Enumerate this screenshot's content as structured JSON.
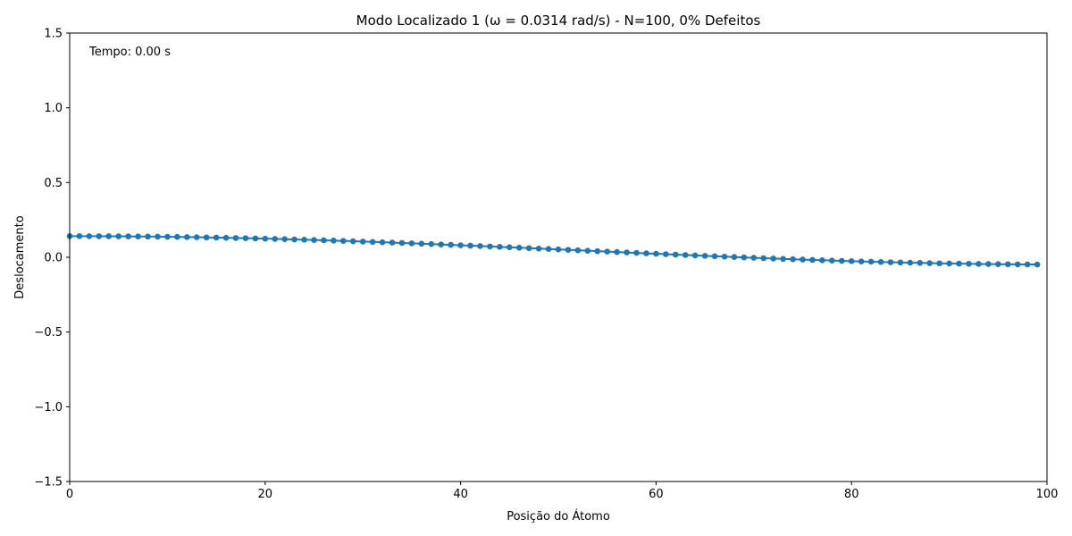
{
  "chart_data": {
    "type": "line",
    "title": "Modo Localizado 1 (ω = 0.0314 rad/s) - N=100, 0% Defeitos",
    "xlabel": "Posição do Átomo",
    "ylabel": "Deslocamento",
    "annotation": "Tempo: 0.00 s",
    "xlim": [
      0,
      100
    ],
    "ylim": [
      -1.5,
      1.5
    ],
    "x_ticks": [
      0,
      20,
      40,
      60,
      80,
      100
    ],
    "x_tick_labels": [
      "0",
      "20",
      "40",
      "60",
      "80",
      "100"
    ],
    "y_ticks": [
      1.5,
      1.0,
      0.5,
      0.0,
      -0.5,
      -1.0,
      -1.5
    ],
    "y_tick_labels": [
      "1.5",
      "1.0",
      "0.5",
      "0.0",
      "−0.5",
      "−1.0",
      "−1.5"
    ],
    "grid": false,
    "series_color": "#1f77b4",
    "series": [
      {
        "x": [
          0,
          1,
          2,
          3,
          4,
          5,
          6,
          7,
          8,
          9,
          10,
          11,
          12,
          13,
          14,
          15,
          16,
          17,
          18,
          19,
          20,
          21,
          22,
          23,
          24,
          25,
          26,
          27,
          28,
          29,
          30,
          31,
          32,
          33,
          34,
          35,
          36,
          37,
          38,
          39,
          40,
          41,
          42,
          43,
          44,
          45,
          46,
          47,
          48,
          49,
          50,
          51,
          52,
          53,
          54,
          55,
          56,
          57,
          58,
          59,
          60,
          61,
          62,
          63,
          64,
          65,
          66,
          67,
          68,
          69,
          70,
          71,
          72,
          73,
          74,
          75,
          76,
          77,
          78,
          79,
          80,
          81,
          82,
          83,
          84,
          85,
          86,
          87,
          88,
          89,
          90,
          91,
          92,
          93,
          94,
          95,
          96,
          97,
          98,
          99
        ],
        "values": [
          0.1414,
          0.1414,
          0.1412,
          0.141,
          0.1407,
          0.1403,
          0.1398,
          0.1393,
          0.1386,
          0.1379,
          0.1371,
          0.1362,
          0.1352,
          0.1341,
          0.133,
          0.1318,
          0.1305,
          0.1291,
          0.1277,
          0.1262,
          0.1246,
          0.1229,
          0.1212,
          0.1194,
          0.1176,
          0.1156,
          0.1137,
          0.1116,
          0.1095,
          0.1074,
          0.1052,
          0.1029,
          0.1006,
          0.0982,
          0.0958,
          0.0934,
          0.0909,
          0.0883,
          0.0858,
          0.0832,
          0.0805,
          0.0778,
          0.0751,
          0.0724,
          0.0696,
          0.0668,
          0.064,
          0.0612,
          0.0583,
          0.0555,
          0.0526,
          0.0497,
          0.0468,
          0.0439,
          0.041,
          0.0381,
          0.0352,
          0.0323,
          0.0294,
          0.0265,
          0.0237,
          0.0208,
          0.018,
          0.0152,
          0.0125,
          0.0097,
          0.007,
          0.0044,
          0.0018,
          -0.0008,
          -0.0034,
          -0.0059,
          -0.0083,
          -0.0107,
          -0.0131,
          -0.0154,
          -0.0176,
          -0.0198,
          -0.0219,
          -0.0239,
          -0.0259,
          -0.0278,
          -0.0296,
          -0.0314,
          -0.0331,
          -0.0347,
          -0.0362,
          -0.0376,
          -0.039,
          -0.0403,
          -0.0415,
          -0.0426,
          -0.0436,
          -0.0445,
          -0.0454,
          -0.0461,
          -0.0468,
          -0.0473,
          -0.0478,
          -0.0481
        ]
      }
    ]
  }
}
